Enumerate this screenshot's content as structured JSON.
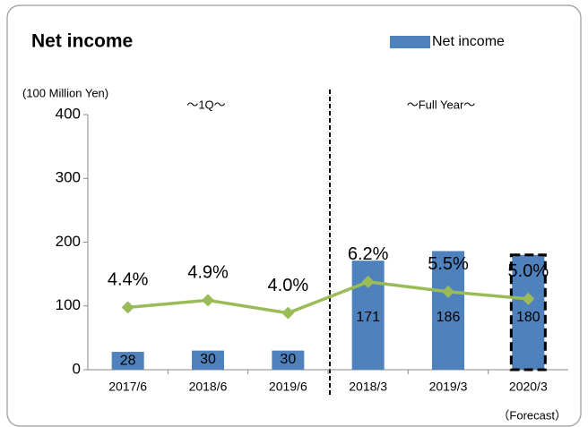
{
  "chart_data": {
    "type": "bar",
    "title": "Net income",
    "y_label": "(100 Million Yen)",
    "annotations": [
      "～1Q～",
      "～Full Year～",
      "（Forecast）"
    ],
    "categories": [
      "2017/6",
      "2018/6",
      "2019/6",
      "2018/3",
      "2019/3",
      "2020/3"
    ],
    "series": [
      {
        "name": "Net income",
        "type": "bar",
        "color": "#4f81bd",
        "values": [
          28,
          30,
          30,
          171,
          186,
          180
        ]
      },
      {
        "type": "line",
        "color": "#9bbb59",
        "axis": "y2",
        "values": [
          4.4,
          4.9,
          4.0,
          6.2,
          5.5,
          5.0
        ],
        "value_labels": [
          "4.4%",
          "4.9%",
          "4.0%",
          "6.2%",
          "5.5%",
          "5.0%"
        ]
      }
    ],
    "ylim": [
      0,
      400
    ],
    "yticks": [
      0,
      100,
      200,
      300,
      400
    ],
    "y2lim": [
      0,
      18
    ],
    "legend": "top-right"
  }
}
